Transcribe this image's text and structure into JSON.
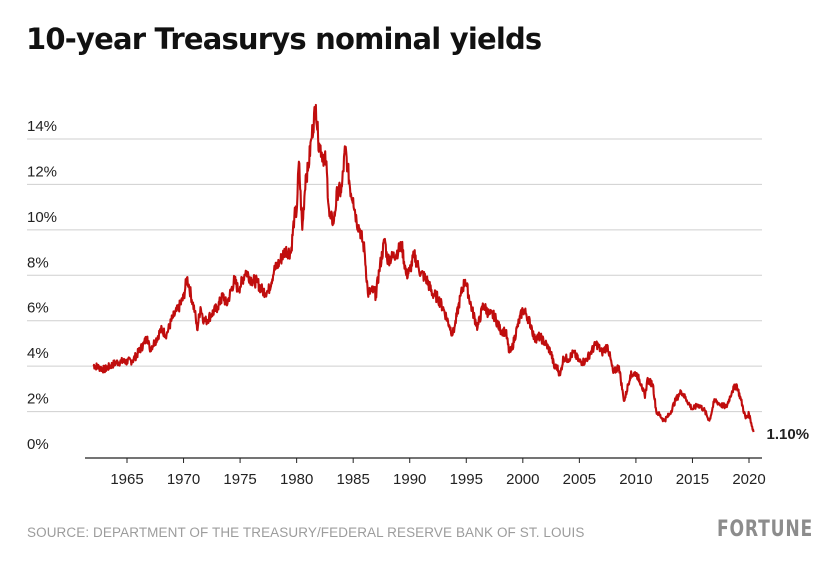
{
  "chart_data": {
    "type": "line",
    "title": "10-year Treasurys nominal yields",
    "xlabel": "",
    "ylabel": "",
    "xlim": [
      1962,
      2020.4
    ],
    "ylim": [
      0,
      14
    ],
    "yticks": [
      0,
      2,
      4,
      6,
      8,
      10,
      12,
      14
    ],
    "ytick_labels": [
      "0%",
      "2%",
      "4%",
      "6%",
      "8%",
      "10%",
      "12%",
      "14%"
    ],
    "xticks": [
      1965,
      1970,
      1975,
      1980,
      1985,
      1990,
      1995,
      2000,
      2005,
      2010,
      2015,
      2020
    ],
    "xtick_labels": [
      "1965",
      "1970",
      "1975",
      "1980",
      "1985",
      "1990",
      "1995",
      "2000",
      "2005",
      "2010",
      "2015",
      "2020"
    ],
    "grid": true,
    "line_color": "#c00d0d",
    "series": [
      {
        "name": "10-year Treasury nominal yield",
        "x": [
          1962.0,
          1962.5,
          1963.0,
          1963.5,
          1964.0,
          1964.5,
          1965.0,
          1965.5,
          1966.0,
          1966.5,
          1966.8,
          1967.0,
          1967.5,
          1968.0,
          1968.5,
          1969.0,
          1969.5,
          1970.0,
          1970.3,
          1970.5,
          1970.8,
          1971.0,
          1971.2,
          1971.5,
          1971.8,
          1972.0,
          1972.5,
          1973.0,
          1973.5,
          1973.8,
          1974.0,
          1974.5,
          1974.8,
          1975.0,
          1975.5,
          1976.0,
          1976.5,
          1977.0,
          1977.5,
          1978.0,
          1978.5,
          1979.0,
          1979.5,
          1979.8,
          1980.0,
          1980.2,
          1980.5,
          1980.8,
          1981.0,
          1981.3,
          1981.7,
          1981.9,
          1982.0,
          1982.3,
          1982.6,
          1982.9,
          1983.0,
          1983.3,
          1983.6,
          1983.9,
          1984.0,
          1984.3,
          1984.5,
          1984.8,
          1985.0,
          1985.3,
          1985.6,
          1986.0,
          1986.3,
          1986.6,
          1986.9,
          1987.0,
          1987.3,
          1987.8,
          1988.0,
          1988.5,
          1989.0,
          1989.3,
          1989.7,
          1990.0,
          1990.4,
          1990.8,
          1991.0,
          1991.5,
          1992.0,
          1992.5,
          1993.0,
          1993.5,
          1993.8,
          1994.0,
          1994.5,
          1994.9,
          1995.0,
          1995.5,
          1996.0,
          1996.5,
          1997.0,
          1997.5,
          1998.0,
          1998.5,
          1998.8,
          1999.0,
          1999.5,
          2000.0,
          2000.3,
          2000.8,
          2001.0,
          2001.5,
          2002.0,
          2002.5,
          2002.8,
          2003.0,
          2003.3,
          2003.6,
          2004.0,
          2004.5,
          2005.0,
          2005.5,
          2006.0,
          2006.5,
          2007.0,
          2007.5,
          2008.0,
          2008.5,
          2008.9,
          2009.0,
          2009.5,
          2010.0,
          2010.5,
          2010.8,
          2011.0,
          2011.5,
          2011.8,
          2012.0,
          2012.5,
          2013.0,
          2013.5,
          2013.9,
          2014.0,
          2014.5,
          2015.0,
          2015.5,
          2016.0,
          2016.5,
          2016.9,
          2017.0,
          2017.5,
          2018.0,
          2018.5,
          2018.9,
          2019.0,
          2019.3,
          2019.7,
          2020.0,
          2020.2,
          2020.4
        ],
        "values": [
          4.05,
          3.95,
          3.85,
          4.0,
          4.15,
          4.2,
          4.2,
          4.25,
          4.6,
          5.0,
          5.3,
          4.75,
          5.1,
          5.6,
          5.4,
          6.1,
          6.5,
          7.0,
          7.9,
          7.5,
          6.8,
          6.4,
          5.6,
          6.6,
          6.0,
          6.0,
          6.3,
          6.6,
          7.1,
          6.7,
          7.0,
          7.8,
          7.4,
          7.5,
          8.2,
          7.8,
          7.7,
          7.3,
          7.3,
          8.2,
          8.6,
          9.1,
          9.0,
          10.6,
          10.8,
          13.0,
          10.0,
          12.4,
          12.6,
          14.0,
          15.5,
          14.0,
          13.8,
          13.3,
          13.0,
          10.6,
          10.5,
          10.4,
          11.7,
          11.7,
          11.9,
          13.6,
          12.8,
          11.6,
          11.4,
          10.4,
          10.0,
          9.1,
          7.2,
          7.3,
          7.3,
          7.1,
          8.2,
          9.6,
          8.7,
          8.8,
          9.1,
          9.3,
          8.0,
          8.2,
          8.9,
          8.3,
          8.1,
          7.8,
          7.2,
          7.0,
          6.5,
          5.8,
          5.4,
          5.8,
          7.1,
          7.8,
          7.6,
          6.5,
          5.7,
          6.7,
          6.3,
          6.2,
          5.6,
          5.5,
          4.6,
          4.7,
          5.7,
          6.5,
          6.3,
          5.7,
          5.2,
          5.3,
          5.0,
          4.6,
          3.9,
          4.0,
          3.6,
          4.4,
          4.3,
          4.6,
          4.2,
          4.2,
          4.6,
          5.0,
          4.6,
          4.9,
          3.7,
          4.0,
          2.6,
          2.5,
          3.6,
          3.7,
          3.2,
          2.6,
          3.4,
          3.2,
          2.0,
          1.9,
          1.6,
          1.9,
          2.5,
          2.8,
          2.9,
          2.5,
          2.1,
          2.3,
          2.1,
          1.6,
          2.4,
          2.5,
          2.3,
          2.2,
          2.9,
          3.2,
          3.0,
          2.5,
          1.7,
          1.9,
          1.5,
          1.1
        ]
      }
    ],
    "end_label": "1.10%",
    "source": "SOURCE: DEPARTMENT OF THE TREASURY/FEDERAL RESERVE BANK OF ST. LOUIS",
    "logo": "FORTUNE"
  }
}
